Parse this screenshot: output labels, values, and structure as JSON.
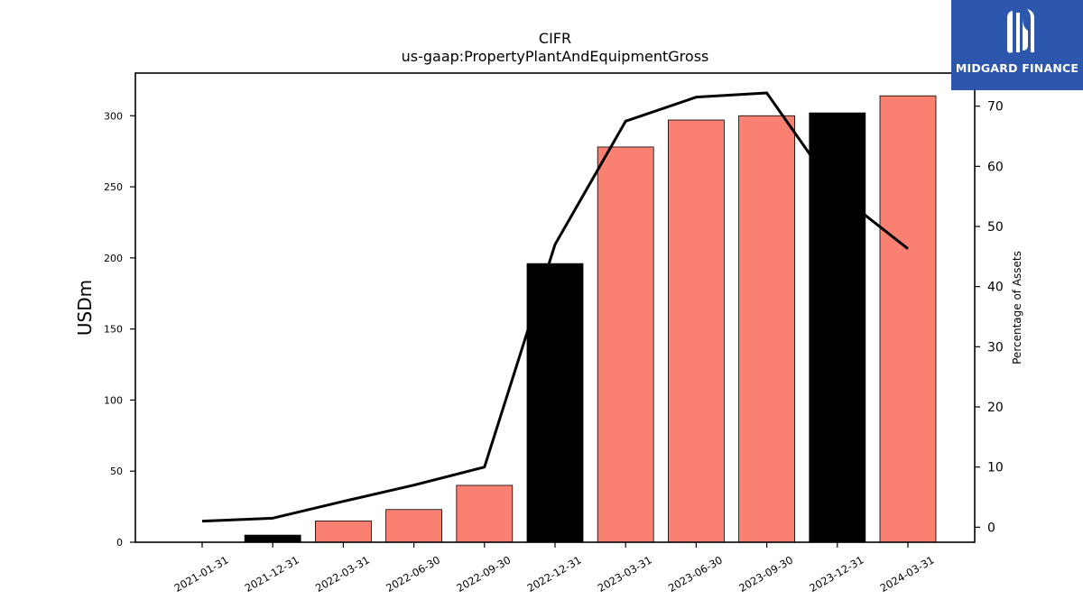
{
  "chart_data": {
    "type": "bar",
    "title": "CIFR",
    "subtitle": "us-gaap:PropertyPlantAndEquipmentGross",
    "ylabel": "USDm",
    "y2label": "Percentage of Assets",
    "categories": [
      "2021-01-31",
      "2021-12-31",
      "2022-03-31",
      "2022-06-30",
      "2022-09-30",
      "2022-12-31",
      "2023-03-31",
      "2023-06-30",
      "2023-09-30",
      "2023-12-31",
      "2024-03-31"
    ],
    "series": [
      {
        "type": "bar",
        "values": [
          0,
          5,
          15,
          23,
          40,
          196,
          278,
          297,
          300,
          302,
          314
        ],
        "colors": [
          "#000000",
          "#000000",
          "#fa8072",
          "#fa8072",
          "#fa8072",
          "#000000",
          "#fa8072",
          "#fa8072",
          "#fa8072",
          "#000000",
          "#fa8072"
        ],
        "axis": "left"
      },
      {
        "type": "line",
        "values": [
          1,
          1.5,
          4.3,
          7,
          10,
          47,
          67.5,
          71.5,
          72.2,
          55.5,
          46.3
        ],
        "color": "#000000",
        "axis": "right"
      }
    ],
    "ylim": [
      0,
      330
    ],
    "y2lim": [
      -2.5,
      75.5
    ],
    "yticks": [
      0,
      50,
      100,
      150,
      200,
      250,
      300
    ],
    "y2ticks": [
      0,
      10,
      20,
      30,
      40,
      50,
      60,
      70
    ],
    "grid": false
  },
  "logo": {
    "text": "MIDGARD FINANCE",
    "background": "#2d57ad"
  }
}
